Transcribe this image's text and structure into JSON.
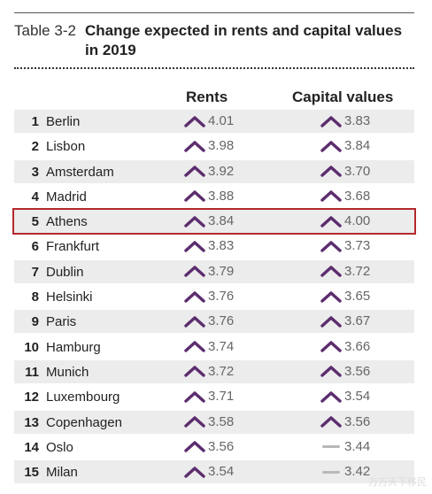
{
  "table": {
    "label": "Table 3-2",
    "title": "Change expected in rents and capital values in 2019",
    "column_rents": "Rents",
    "column_capital": "Capital values",
    "colors": {
      "up_arrow": "#5c2d6e",
      "flat_dash": "#b8b8b8",
      "highlight_border": "#b3282d"
    },
    "rows": [
      {
        "rank": "1",
        "city": "Berlin",
        "rents": "4.01",
        "rents_trend": "up",
        "capital": "3.83",
        "capital_trend": "up"
      },
      {
        "rank": "2",
        "city": "Lisbon",
        "rents": "3.98",
        "rents_trend": "up",
        "capital": "3.84",
        "capital_trend": "up"
      },
      {
        "rank": "3",
        "city": "Amsterdam",
        "rents": "3.92",
        "rents_trend": "up",
        "capital": "3.70",
        "capital_trend": "up"
      },
      {
        "rank": "4",
        "city": "Madrid",
        "rents": "3.88",
        "rents_trend": "up",
        "capital": "3.68",
        "capital_trend": "up"
      },
      {
        "rank": "5",
        "city": "Athens",
        "rents": "3.84",
        "rents_trend": "up",
        "capital": "4.00",
        "capital_trend": "up",
        "highlighted": true
      },
      {
        "rank": "6",
        "city": "Frankfurt",
        "rents": "3.83",
        "rents_trend": "up",
        "capital": "3.73",
        "capital_trend": "up"
      },
      {
        "rank": "7",
        "city": "Dublin",
        "rents": "3.79",
        "rents_trend": "up",
        "capital": "3.72",
        "capital_trend": "up"
      },
      {
        "rank": "8",
        "city": "Helsinki",
        "rents": "3.76",
        "rents_trend": "up",
        "capital": "3.65",
        "capital_trend": "up"
      },
      {
        "rank": "9",
        "city": "Paris",
        "rents": "3.76",
        "rents_trend": "up",
        "capital": "3.67",
        "capital_trend": "up"
      },
      {
        "rank": "10",
        "city": "Hamburg",
        "rents": "3.74",
        "rents_trend": "up",
        "capital": "3.66",
        "capital_trend": "up"
      },
      {
        "rank": "11",
        "city": "Munich",
        "rents": "3.72",
        "rents_trend": "up",
        "capital": "3.56",
        "capital_trend": "up"
      },
      {
        "rank": "12",
        "city": "Luxembourg",
        "rents": "3.71",
        "rents_trend": "up",
        "capital": "3.54",
        "capital_trend": "up"
      },
      {
        "rank": "13",
        "city": "Copenhagen",
        "rents": "3.58",
        "rents_trend": "up",
        "capital": "3.56",
        "capital_trend": "up"
      },
      {
        "rank": "14",
        "city": "Oslo",
        "rents": "3.56",
        "rents_trend": "up",
        "capital": "3.44",
        "capital_trend": "flat"
      },
      {
        "rank": "15",
        "city": "Milan",
        "rents": "3.54",
        "rents_trend": "up",
        "capital": "3.42",
        "capital_trend": "flat"
      }
    ]
  },
  "watermark": "万万天下移民"
}
